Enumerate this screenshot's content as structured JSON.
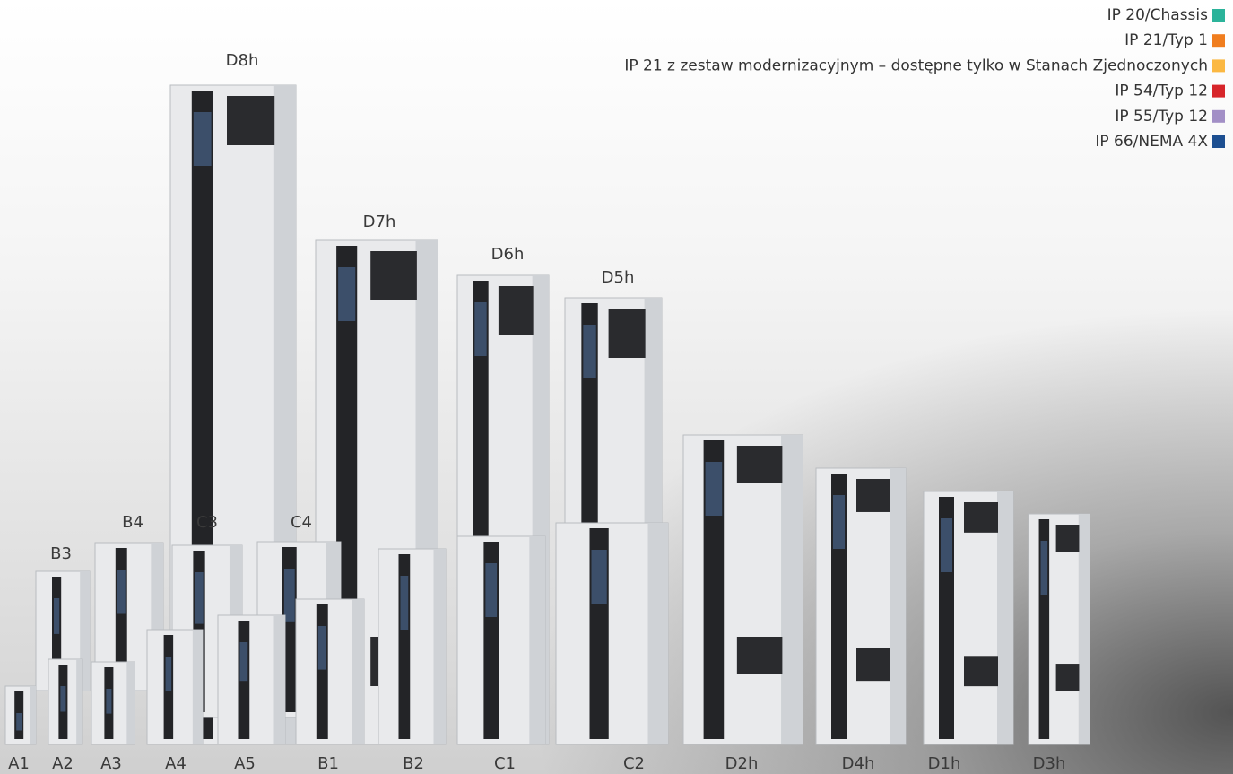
{
  "legend": [
    {
      "label": "IP 20/Chassis",
      "color": "#2bb39a"
    },
    {
      "label": "IP 21/Typ 1",
      "color": "#f07d1e"
    },
    {
      "label": "IP 21 z zestaw modernizacyjnym – dostępne tylko w Stanach Zjednoczonych",
      "color": "#fbb842"
    },
    {
      "label": "IP 54/Typ 12",
      "color": "#d7252a"
    },
    {
      "label": "IP 55/Typ 12",
      "color": "#a28fc6"
    },
    {
      "label": "IP 66/NEMA 4X",
      "color": "#1d4f91"
    }
  ],
  "units": [
    "D8h",
    "D7h",
    "D6h",
    "D5h",
    "B3",
    "B4",
    "C3",
    "C4",
    "A1",
    "A2",
    "A3",
    "A4",
    "A5",
    "B1",
    "B2",
    "C1",
    "C2",
    "D2h",
    "D4h",
    "D1h",
    "D3h"
  ]
}
